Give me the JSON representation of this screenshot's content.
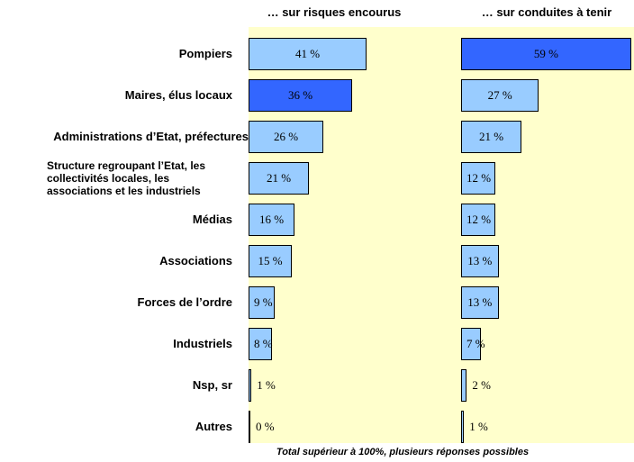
{
  "chart_data": {
    "type": "bar",
    "categories": [
      "Pompiers",
      "Maires, élus locaux",
      "Administrations d’Etat, préfectures",
      "Structure regroupant l’Etat, les\ncollectivités locales, les\nassociations et les industriels",
      "Médias",
      "Associations",
      "Forces de l’ordre",
      "Industriels",
      "Nsp, sr",
      "Autres"
    ],
    "series": [
      {
        "name": "… sur risques encourus",
        "values": [
          41,
          36,
          26,
          21,
          16,
          15,
          9,
          8,
          1,
          0
        ],
        "value_labels": [
          "41 %",
          "36 %",
          "26 %",
          "21 %",
          "16 %",
          "15 %",
          "9 %",
          "8 %",
          "1 %",
          "0 %"
        ],
        "colors": [
          "#99ccff",
          "#3366ff",
          "#99ccff",
          "#99ccff",
          "#99ccff",
          "#99ccff",
          "#99ccff",
          "#99ccff",
          "#99ccff",
          "#99ccff"
        ]
      },
      {
        "name": "… sur conduites à tenir",
        "values": [
          59,
          27,
          21,
          12,
          12,
          13,
          13,
          7,
          2,
          1
        ],
        "value_labels": [
          "59 %",
          "27 %",
          "21 %",
          "12 %",
          "12 %",
          "13 %",
          "13 %",
          "7 %",
          "2 %",
          "1 %"
        ],
        "colors": [
          "#3366ff",
          "#99ccff",
          "#99ccff",
          "#99ccff",
          "#99ccff",
          "#99ccff",
          "#99ccff",
          "#99ccff",
          "#99ccff",
          "#99ccff"
        ]
      }
    ],
    "xlim": [
      0,
      60
    ],
    "note": "Total supérieur à 100%, plusieurs réponses possibles"
  }
}
